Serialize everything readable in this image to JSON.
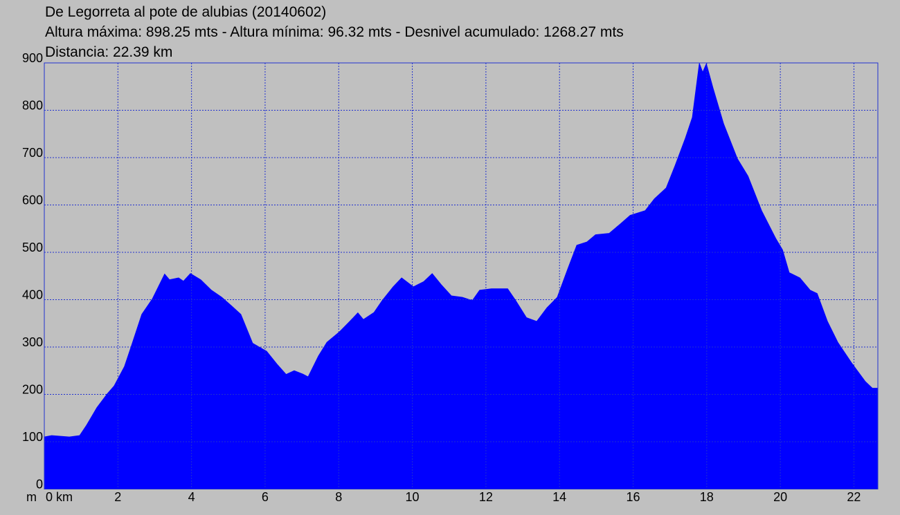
{
  "chart_data": {
    "type": "area",
    "title": "De Legorreta al pote de alubias (20140602)",
    "subtitle": "Altura máxima: 898.25 mts - Altura mínima: 96.32 mts - Desnivel acumulado: 1268.27 mts",
    "note": "Distancia: 22.39 km",
    "y_label": "m",
    "color": "#0000ff",
    "grid": true,
    "xlim": [
      0,
      22.65
    ],
    "ylim": [
      0,
      900
    ],
    "xticks": [
      {
        "value": 0,
        "label": "0 km"
      },
      2,
      4,
      6,
      8,
      10,
      12,
      14,
      16,
      18,
      20,
      22
    ],
    "yticks": [
      0,
      100,
      200,
      300,
      400,
      500,
      600,
      700,
      800,
      900
    ],
    "x": [
      0,
      0.2,
      0.68,
      0.96,
      1.15,
      1.43,
      1.71,
      1.9,
      2.18,
      2.37,
      2.65,
      2.94,
      3.27,
      3.4,
      3.65,
      3.78,
      3.97,
      4.25,
      4.54,
      4.82,
      5.1,
      5.34,
      5.66,
      6.04,
      6.32,
      6.57,
      6.79,
      7.02,
      7.17,
      7.45,
      7.68,
      8.02,
      8.3,
      8.52,
      8.67,
      8.96,
      9.18,
      9.48,
      9.71,
      10.03,
      10.31,
      10.54,
      10.78,
      11.06,
      11.36,
      11.63,
      11.83,
      12.15,
      12.59,
      12.81,
      13.1,
      13.38,
      13.66,
      13.94,
      14.22,
      14.47,
      14.75,
      14.98,
      15.35,
      15.64,
      15.92,
      16.33,
      16.58,
      16.9,
      17.14,
      17.42,
      17.61,
      17.8,
      17.89,
      17.99,
      18.17,
      18.46,
      18.83,
      19.12,
      19.49,
      19.87,
      20.06,
      20.24,
      20.53,
      20.81,
      21.0,
      21.28,
      21.56,
      21.94,
      22.31,
      22.5,
      22.65
    ],
    "y": [
      110,
      113,
      110,
      113,
      135,
      172,
      201,
      218,
      259,
      303,
      369,
      402,
      454,
      442,
      446,
      439,
      455,
      442,
      420,
      405,
      386,
      369,
      308,
      291,
      264,
      242,
      250,
      243,
      237,
      281,
      310,
      332,
      354,
      372,
      358,
      373,
      398,
      427,
      446,
      427,
      438,
      455,
      432,
      408,
      405,
      398,
      420,
      423,
      423,
      398,
      362,
      354,
      383,
      405,
      464,
      515,
      522,
      537,
      540,
      559,
      578,
      588,
      613,
      636,
      683,
      741,
      785,
      899,
      880,
      898,
      847,
      771,
      698,
      661,
      588,
      530,
      505,
      457,
      446,
      420,
      413,
      354,
      310,
      266,
      227,
      213,
      213
    ]
  }
}
